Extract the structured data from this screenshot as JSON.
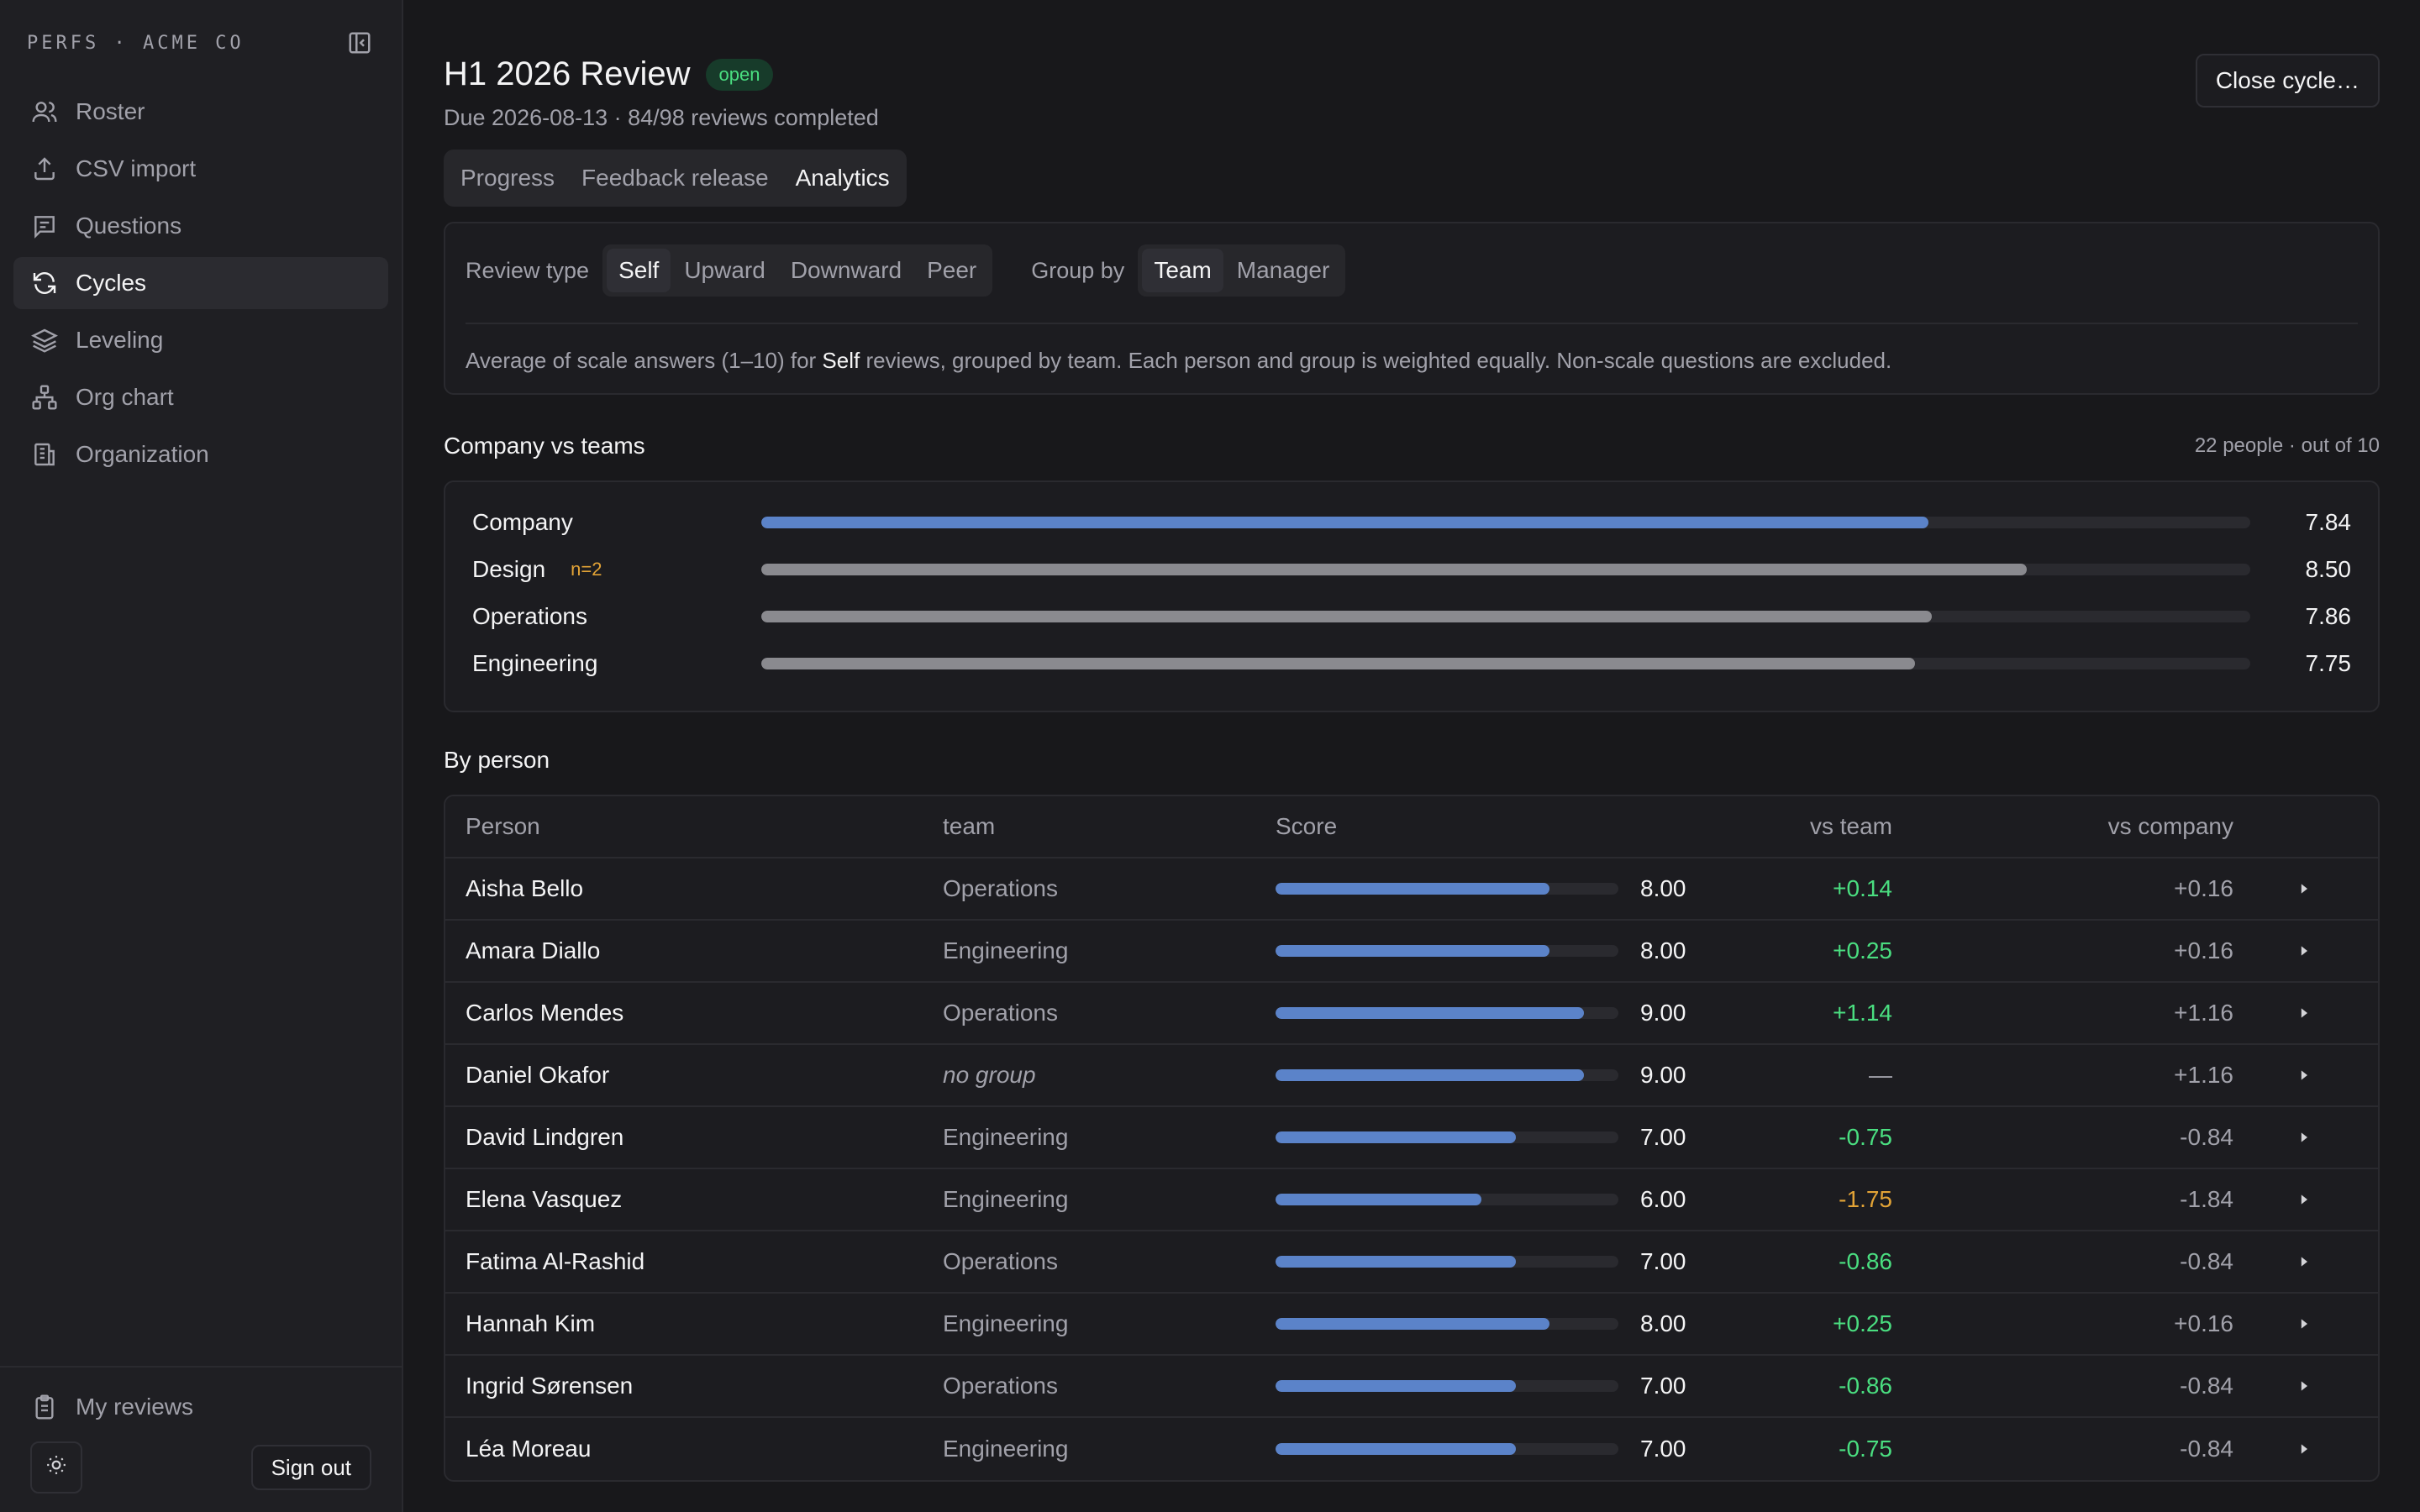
{
  "brand": "PERFS · ACME CO",
  "colors": {
    "accent": "#5b83c9",
    "muted_bar": "#8a8a8f",
    "positive": "#4ade80",
    "warning": "#e2a336"
  },
  "sidebar": {
    "items": [
      {
        "label": "Roster",
        "icon": "users-icon",
        "active": false
      },
      {
        "label": "CSV import",
        "icon": "upload-icon",
        "active": false
      },
      {
        "label": "Questions",
        "icon": "message-icon",
        "active": false
      },
      {
        "label": "Cycles",
        "icon": "refresh-icon",
        "active": true
      },
      {
        "label": "Leveling",
        "icon": "layers-icon",
        "active": false
      },
      {
        "label": "Org chart",
        "icon": "org-chart-icon",
        "active": false
      },
      {
        "label": "Organization",
        "icon": "building-icon",
        "active": false
      }
    ],
    "my_reviews": "My reviews",
    "sign_out": "Sign out"
  },
  "header": {
    "title": "H1 2026 Review",
    "status": "open",
    "subtitle": "Due 2026-08-13 · 84/98 reviews completed",
    "close_button": "Close cycle…"
  },
  "tabs": [
    "Progress",
    "Feedback release",
    "Analytics"
  ],
  "filters": {
    "review_type_label": "Review type",
    "review_types": [
      "Self",
      "Upward",
      "Downward",
      "Peer"
    ],
    "group_by_label": "Group by",
    "group_by": [
      "Team",
      "Manager"
    ],
    "desc_before": "Average of scale answers (1–10) for ",
    "desc_bold": "Self",
    "desc_after": " reviews, grouped by team. Each person and group is weighted equally. Non-scale questions are excluded."
  },
  "company_vs_teams": {
    "title": "Company vs teams",
    "meta": "22 people · out of 10",
    "max": 10,
    "rows": [
      {
        "label": "Company",
        "value": 7.84,
        "display": "7.84",
        "n": ""
      },
      {
        "label": "Design",
        "value": 8.5,
        "display": "8.50",
        "n": "n=2"
      },
      {
        "label": "Operations",
        "value": 7.86,
        "display": "7.86",
        "n": ""
      },
      {
        "label": "Engineering",
        "value": 7.75,
        "display": "7.75",
        "n": ""
      }
    ]
  },
  "by_person": {
    "title": "By person",
    "columns": [
      "Person",
      "team",
      "Score",
      "vs team",
      "vs company"
    ],
    "rows": [
      {
        "name": "Aisha Bello",
        "team": "Operations",
        "score": 8.0,
        "score_display": "8.00",
        "vs_team": "+0.14",
        "vs_company": "+0.16"
      },
      {
        "name": "Amara Diallo",
        "team": "Engineering",
        "score": 8.0,
        "score_display": "8.00",
        "vs_team": "+0.25",
        "vs_company": "+0.16"
      },
      {
        "name": "Carlos Mendes",
        "team": "Operations",
        "score": 9.0,
        "score_display": "9.00",
        "vs_team": "+1.14",
        "vs_company": "+1.16"
      },
      {
        "name": "Daniel Okafor",
        "team": "no group",
        "score": 9.0,
        "score_display": "9.00",
        "vs_team": "—",
        "vs_company": "+1.16"
      },
      {
        "name": "David Lindgren",
        "team": "Engineering",
        "score": 7.0,
        "score_display": "7.00",
        "vs_team": "-0.75",
        "vs_company": "-0.84"
      },
      {
        "name": "Elena Vasquez",
        "team": "Engineering",
        "score": 6.0,
        "score_display": "6.00",
        "vs_team": "-1.75",
        "vs_company": "-1.84"
      },
      {
        "name": "Fatima Al-Rashid",
        "team": "Operations",
        "score": 7.0,
        "score_display": "7.00",
        "vs_team": "-0.86",
        "vs_company": "-0.84"
      },
      {
        "name": "Hannah Kim",
        "team": "Engineering",
        "score": 8.0,
        "score_display": "8.00",
        "vs_team": "+0.25",
        "vs_company": "+0.16"
      },
      {
        "name": "Ingrid Sørensen",
        "team": "Operations",
        "score": 7.0,
        "score_display": "7.00",
        "vs_team": "-0.86",
        "vs_company": "-0.84"
      },
      {
        "name": "Léa Moreau",
        "team": "Engineering",
        "score": 7.0,
        "score_display": "7.00",
        "vs_team": "-0.75",
        "vs_company": "-0.84"
      }
    ]
  }
}
